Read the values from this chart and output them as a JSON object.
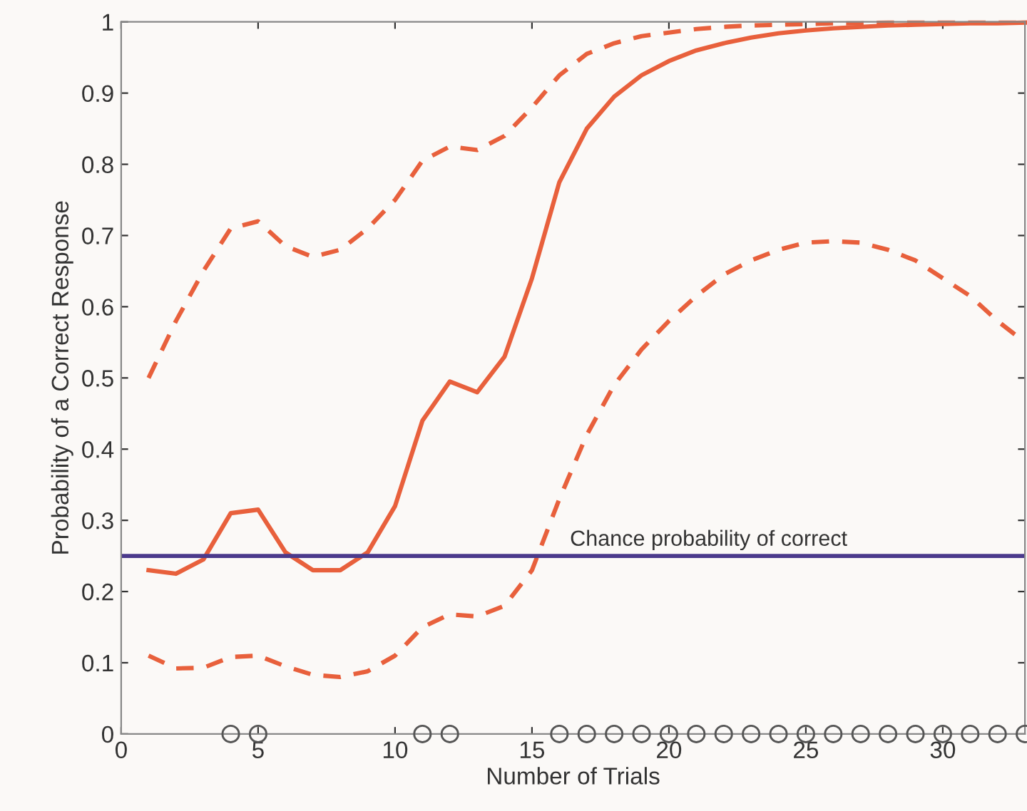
{
  "chart_data": {
    "type": "line",
    "xlabel": "Number of Trials",
    "ylabel": "Probability of a Correct Response",
    "xlim": [
      0,
      33
    ],
    "ylim": [
      0,
      1
    ],
    "xticks": [
      0,
      5,
      10,
      15,
      20,
      25,
      30
    ],
    "yticks": [
      0,
      0.1,
      0.2,
      0.3,
      0.4,
      0.5,
      0.6,
      0.7,
      0.8,
      0.9,
      1
    ],
    "grid": false,
    "x": [
      1,
      2,
      3,
      4,
      5,
      6,
      7,
      8,
      9,
      10,
      11,
      12,
      13,
      14,
      15,
      16,
      17,
      18,
      19,
      20,
      21,
      22,
      23,
      24,
      25,
      26,
      27,
      28,
      29,
      30,
      31,
      32,
      33
    ],
    "series": [
      {
        "color": "#e8603c",
        "line_style": "solid",
        "values": [
          0.23,
          0.225,
          0.245,
          0.31,
          0.315,
          0.255,
          0.23,
          0.23,
          0.255,
          0.32,
          0.44,
          0.495,
          0.48,
          0.53,
          0.64,
          0.775,
          0.85,
          0.895,
          0.925,
          0.945,
          0.96,
          0.97,
          0.978,
          0.984,
          0.988,
          0.991,
          0.993,
          0.995,
          0.996,
          0.997,
          0.998,
          0.998,
          0.999
        ]
      },
      {
        "color": "#e8603c",
        "line_style": "dashed",
        "values": [
          0.5,
          0.58,
          0.65,
          0.71,
          0.72,
          0.685,
          0.67,
          0.68,
          0.71,
          0.75,
          0.805,
          0.825,
          0.82,
          0.84,
          0.88,
          0.925,
          0.955,
          0.97,
          0.98,
          0.985,
          0.99,
          0.993,
          0.995,
          0.996,
          0.997,
          0.998,
          0.998,
          0.999,
          0.999,
          0.999,
          0.999,
          0.999,
          0.999
        ]
      },
      {
        "color": "#e8603c",
        "line_style": "dashed",
        "values": [
          0.11,
          0.092,
          0.093,
          0.108,
          0.11,
          0.095,
          0.083,
          0.08,
          0.088,
          0.11,
          0.15,
          0.168,
          0.165,
          0.18,
          0.23,
          0.33,
          0.42,
          0.49,
          0.54,
          0.58,
          0.615,
          0.645,
          0.665,
          0.68,
          0.69,
          0.692,
          0.69,
          0.68,
          0.665,
          0.64,
          0.615,
          0.58,
          0.55
        ]
      },
      {
        "type": "scatter",
        "color": "#555555",
        "marker": "circle",
        "x": [
          4,
          5,
          11,
          12,
          16,
          17,
          18,
          19,
          20,
          21,
          22,
          23,
          24,
          25,
          26,
          27,
          28,
          29,
          30,
          31,
          32,
          33
        ],
        "values": [
          0,
          0,
          0,
          0,
          0,
          0,
          0,
          0,
          0,
          0,
          0,
          0,
          0,
          0,
          0,
          0,
          0,
          0,
          0,
          0,
          0,
          0
        ]
      }
    ],
    "ref_lines": [
      {
        "axis": "y",
        "value": 0.25,
        "label": "Chance probability of correct",
        "color": "#4b3a8c"
      }
    ]
  }
}
